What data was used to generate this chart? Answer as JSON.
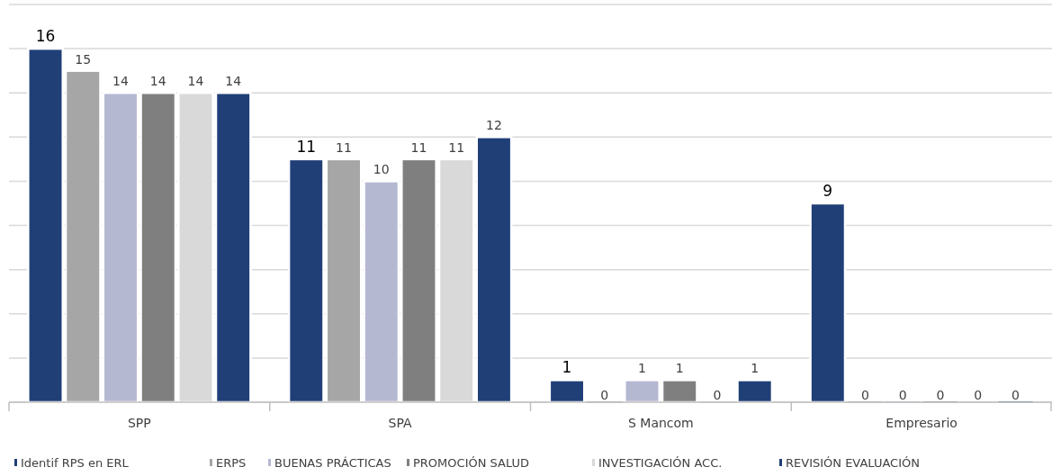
{
  "chart_data": {
    "type": "bar",
    "categories": [
      "SPP",
      "SPA",
      "S Mancom",
      "Empresario"
    ],
    "series": [
      {
        "name": "Identif RPS en ERL",
        "color": "#203f77",
        "values": [
          16,
          11,
          1,
          9
        ]
      },
      {
        "name": "ERPS",
        "color": "#a6a6a6",
        "values": [
          15,
          11,
          0,
          0
        ]
      },
      {
        "name": "BUENAS PRÁCTICAS",
        "color": "#b5b8d1",
        "values": [
          14,
          10,
          1,
          0
        ]
      },
      {
        "name": "PROMOCIÓN SALUD",
        "color": "#7f7f7f",
        "values": [
          14,
          11,
          1,
          0
        ]
      },
      {
        "name": "INVESTIGACIÓN ACC.",
        "color": "#d9d9d9",
        "values": [
          14,
          11,
          0,
          0
        ]
      },
      {
        "name": "REVISIÓN EVALUACIÓN",
        "color": "#203f77",
        "values": [
          14,
          12,
          1,
          0
        ]
      }
    ],
    "ylim": [
      0,
      18
    ],
    "yticks": [
      {
        "value": 0,
        "label": null
      },
      {
        "value": 2,
        "label": null
      },
      {
        "value": 4,
        "label": null
      },
      {
        "value": 6,
        "label": null
      },
      {
        "value": 8,
        "label": null
      },
      {
        "value": 10,
        "label": null
      },
      {
        "value": 12,
        "label": null
      },
      {
        "value": 14,
        "label": null
      },
      {
        "value": 16,
        "label": null
      },
      {
        "value": 18,
        "label": null
      }
    ],
    "tick_labels": "x",
    "grid": "y",
    "legend": "bottom",
    "data_labels": true
  }
}
